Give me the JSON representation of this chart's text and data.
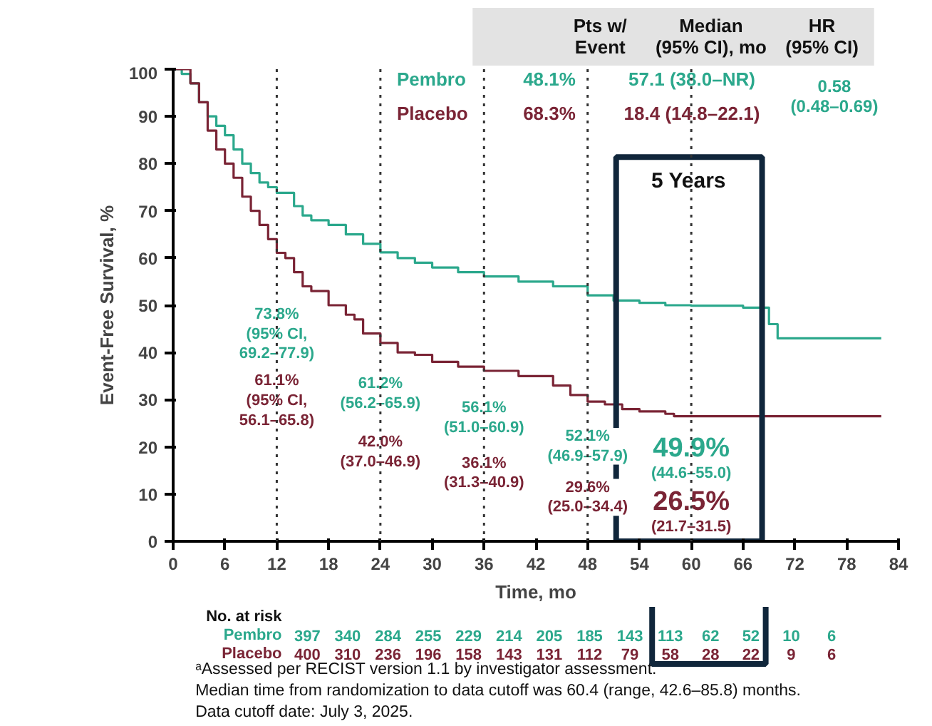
{
  "chart_data": {
    "type": "step",
    "xlabel": "Time, mo",
    "ylabel": "Event-Free Survival, %",
    "xlim": [
      0,
      84
    ],
    "xticks": [
      0,
      6,
      12,
      18,
      24,
      30,
      36,
      42,
      48,
      54,
      60,
      66,
      72,
      78,
      84
    ],
    "ylim": [
      0,
      100
    ],
    "yticks": [
      0,
      10,
      20,
      30,
      40,
      50,
      60,
      70,
      80,
      90,
      100
    ],
    "grid": false,
    "series": [
      {
        "name": "Pembro",
        "color": "#2ba88c",
        "x": [
          0,
          1,
          2,
          3,
          4,
          5,
          6,
          7,
          8,
          9,
          10,
          11,
          12,
          14,
          15,
          16,
          18,
          20,
          22,
          24,
          26,
          28,
          30,
          33,
          36,
          40,
          44,
          48,
          51,
          54,
          57,
          60,
          66,
          69,
          70,
          82
        ],
        "values": [
          100,
          99,
          97,
          93,
          90,
          88,
          86,
          83,
          80,
          78,
          76,
          75,
          73.8,
          71,
          69,
          68,
          67,
          65,
          63,
          61.2,
          60,
          59,
          58,
          57,
          56.1,
          55,
          54,
          52.1,
          51,
          50.5,
          50,
          49.9,
          49.5,
          46,
          43,
          43
        ]
      },
      {
        "name": "Placebo",
        "color": "#7a2435",
        "x": [
          0,
          2,
          3,
          4,
          5,
          6,
          7,
          8,
          9,
          10,
          11,
          12,
          13,
          14,
          15,
          16,
          18,
          20,
          21,
          22,
          24,
          26,
          28,
          30,
          33,
          36,
          40,
          44,
          46,
          48,
          50,
          52,
          54,
          57,
          58,
          82
        ],
        "values": [
          100,
          97,
          93,
          87,
          83,
          80,
          77,
          73,
          70,
          67,
          64,
          61.1,
          60,
          57,
          54,
          53,
          50,
          48,
          47,
          44,
          42,
          40,
          39.5,
          38,
          37,
          36.1,
          35,
          33,
          31,
          29.6,
          29,
          28,
          27.5,
          27,
          26.5,
          26.5
        ]
      }
    ],
    "ref_lines": [
      {
        "axis": "x",
        "value": 12,
        "color": "#333333",
        "line_style": "dotted"
      },
      {
        "axis": "x",
        "value": 24,
        "color": "#333333",
        "line_style": "dotted"
      },
      {
        "axis": "x",
        "value": 36,
        "color": "#333333",
        "line_style": "dotted"
      },
      {
        "axis": "x",
        "value": 48,
        "color": "#333333",
        "line_style": "dotted"
      },
      {
        "axis": "x",
        "value": 60,
        "color": "#333333",
        "line_style": "dotted"
      }
    ],
    "annotations": [
      "Pts w/\nEvent",
      "Median\n(95% CI), mo",
      "HR\n(95% CI)",
      "48.1%",
      "57.1 (38.0–NR)",
      "68.3%",
      "18.4 (14.8–22.1)",
      "0.58\n(0.48–0.69)",
      "73.8%\n(95% CI,\n69.2–77.9)",
      "61.1%\n(95% CI,\n56.1–65.8)",
      "61.2%\n(56.2–65.9)",
      "42.0%\n(37.0–46.9)",
      "56.1%\n(51.0–60.9)",
      "36.1%\n(31.3–40.9)",
      "52.1%\n(46.9–57.9)",
      "29.6%\n(25.0–34.4)",
      "49.9%\n(44.6–55.0)",
      "26.5%\n(21.7–31.5)",
      "5 Years",
      "No. at risk",
      "397",
      "340",
      "284",
      "255",
      "229",
      "214",
      "205",
      "185",
      "143",
      "113",
      "62",
      "52",
      "10",
      "6",
      "400",
      "310",
      "236",
      "196",
      "158",
      "143",
      "131",
      "112",
      "79",
      "58",
      "28",
      "22",
      "9",
      "6",
      "ᵃAssessed per RECIST version 1.1 by investigator assessment.",
      "Median time from randomization to data cutoff was 60.4 (range, 42.6–85.8) months.",
      "Data cutoff date: July 3, 2025."
    ]
  }
}
